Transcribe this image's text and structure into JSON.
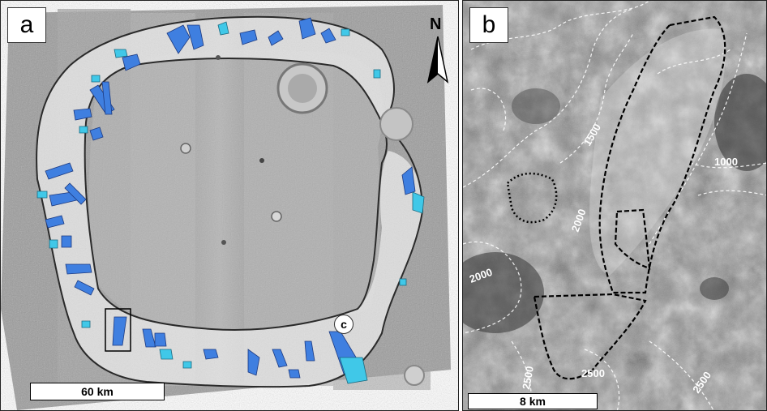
{
  "panel_a": {
    "label": "a",
    "north_label": "N",
    "scale_label": "60 km",
    "callout_label": "c"
  },
  "panel_b": {
    "label": "b",
    "scale_label": "8 km",
    "contours": [
      "1500",
      "1000",
      "2000",
      "2000",
      "2500",
      "2500",
      "2500"
    ]
  },
  "colors": {
    "deposit_blue": "#3f7fe0",
    "deposit_cyan": "#40c8e8",
    "outline": "#2a2a2a",
    "contour": "#ffffff"
  }
}
